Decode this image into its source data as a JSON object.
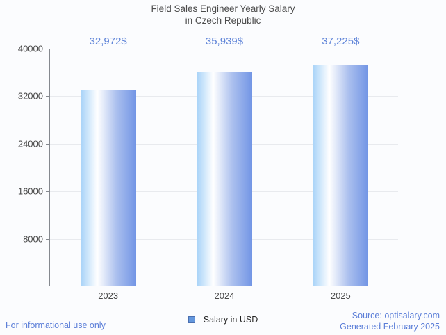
{
  "title": {
    "line1": "Field Sales Engineer Yearly Salary",
    "line2": "in Czech Republic"
  },
  "chart_data": {
    "type": "bar",
    "title": "Field Sales Engineer Yearly Salary in Czech Republic",
    "categories": [
      "2023",
      "2024",
      "2025"
    ],
    "series": [
      {
        "name": "Salary in USD",
        "values": [
          32972,
          35939,
          37225
        ],
        "value_labels": [
          "32,972$",
          "35,939$",
          "37,225$"
        ]
      }
    ],
    "xlabel": "",
    "ylabel": "",
    "ylim": [
      0,
      40000
    ],
    "yticks": [
      8000,
      16000,
      24000,
      32000,
      40000
    ],
    "grid": true,
    "legend_position": "bottom"
  },
  "legend": {
    "label": "Salary in USD",
    "swatch_color": "#6397dd"
  },
  "footer": {
    "left": "For informational use only",
    "source": "Source: optisalary.com",
    "generated": "Generated February 2025"
  },
  "colors": {
    "background": "#fbfcfe",
    "bar_gradient_left": "#a6d2f8",
    "bar_gradient_mid": "#ffffff",
    "bar_gradient_right": "#7295e5",
    "value_label": "#5f84d8",
    "footer_link": "#5b7ed8",
    "axis": "#85898f",
    "gridline": "#e8eaee",
    "tick_label": "#494949",
    "title": "#4c4c4c"
  }
}
